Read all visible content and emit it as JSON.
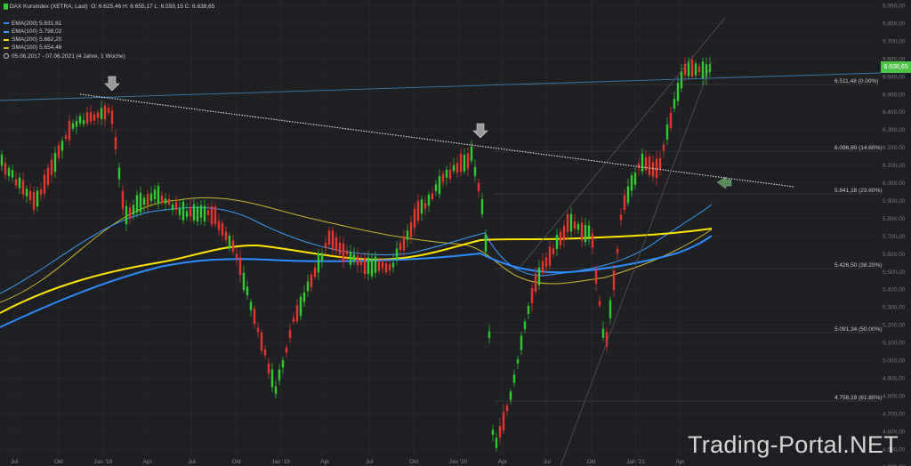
{
  "info": {
    "title": "DAX Kursindex (XETRA, Last)",
    "ohlc": "O: 6.625,46  H: 6.655,17  L: 6.559,15  C: 6.638,65",
    "ema200": "EMA(200)  5.631,61",
    "ema100": "EMA(100)  5.798,02",
    "sma200": "SMA(200)  5.662,20",
    "sma100": "SMA(100)  5.654,46",
    "period": "05.06.2017 - 07.06.2021    (4 Jahre, 1 Woche)"
  },
  "colors": {
    "background": "#1e1f22",
    "up": "#33cc33",
    "down": "#e8352e",
    "ema200": "#2f8cff",
    "ema100": "#3aa0ff",
    "sma200": "#ffe500",
    "sma100": "#c9b72a",
    "fib": "#4a4a4a",
    "trend_dotted": "#e8e8e8",
    "horizontal_blue": "#3a7fb5",
    "tag": "#4fc24a"
  },
  "watermark": "Trading-Portal.NET",
  "last_price": "6.638,65",
  "chart_data": {
    "type": "candlestick",
    "y_axis_ticks": [
      "9.950,00",
      "9.800,00",
      "9.700,00",
      "9.600,00",
      "9.500,00",
      "6.900,00",
      "6.400,00",
      "6.300,00",
      "6.200,00",
      "6.100,00",
      "6.000,00",
      "5.900,00",
      "5.800,00",
      "5.700,00",
      "5.600,00",
      "5.500,00",
      "5.400,00",
      "5.300,00",
      "5.200,00",
      "5.100,00",
      "5.000,00",
      "4.900,00",
      "4.800,00",
      "4.700,00",
      "4.600,00",
      "4.500,00",
      "4.000,00"
    ],
    "x_axis_ticks": [
      "Jul",
      "Okt",
      "Jan '18",
      "Apr",
      "Jul",
      "Okt",
      "Jan '19",
      "Apr",
      "Jul",
      "Okt",
      "Jan '20",
      "Apr",
      "Jul",
      "Okt",
      "Jan '21",
      "Apr"
    ],
    "fibonacci_levels": [
      {
        "label": "6.511,48 (0.00%)"
      },
      {
        "label": "6.096,80 (14.60%)"
      },
      {
        "label": "5.841,18 (23.60%)"
      },
      {
        "label": "5.426,50 (38.20%)"
      },
      {
        "label": "5.091,34 (50.00%)"
      },
      {
        "label": "4.756,19 (61.80%)"
      }
    ],
    "period": "05.06.2017 - 07.06.2021"
  }
}
